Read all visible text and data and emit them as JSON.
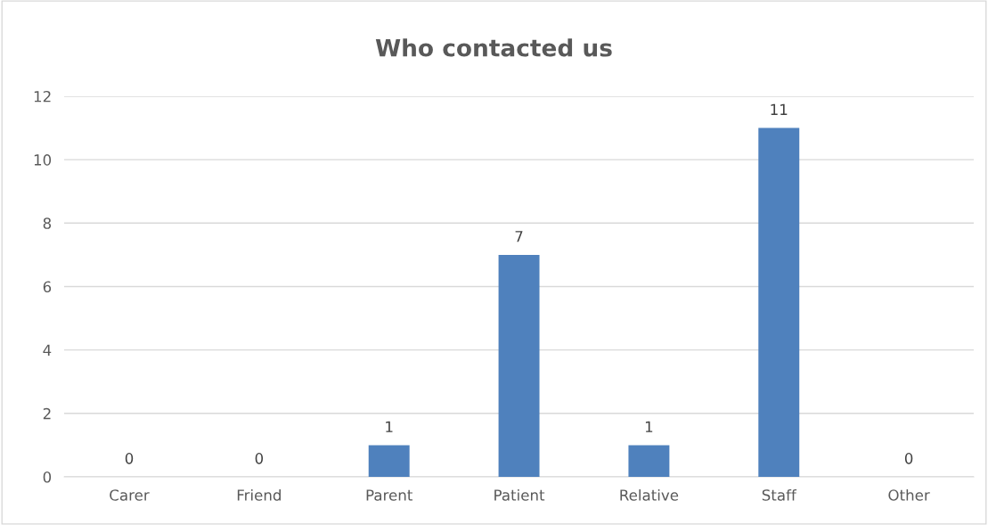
{
  "chart_data": {
    "type": "bar",
    "title": "Who contacted us",
    "categories": [
      "Carer",
      "Friend",
      "Parent",
      "Patient",
      "Relative",
      "Staff",
      "Other"
    ],
    "values": [
      0,
      0,
      1,
      7,
      1,
      11,
      0
    ],
    "color": "#4f81bd",
    "ylim": [
      0,
      12
    ],
    "yticks": [
      0,
      2,
      4,
      6,
      8,
      10,
      12
    ],
    "grid": "y",
    "data_labels": true,
    "legend": false
  }
}
